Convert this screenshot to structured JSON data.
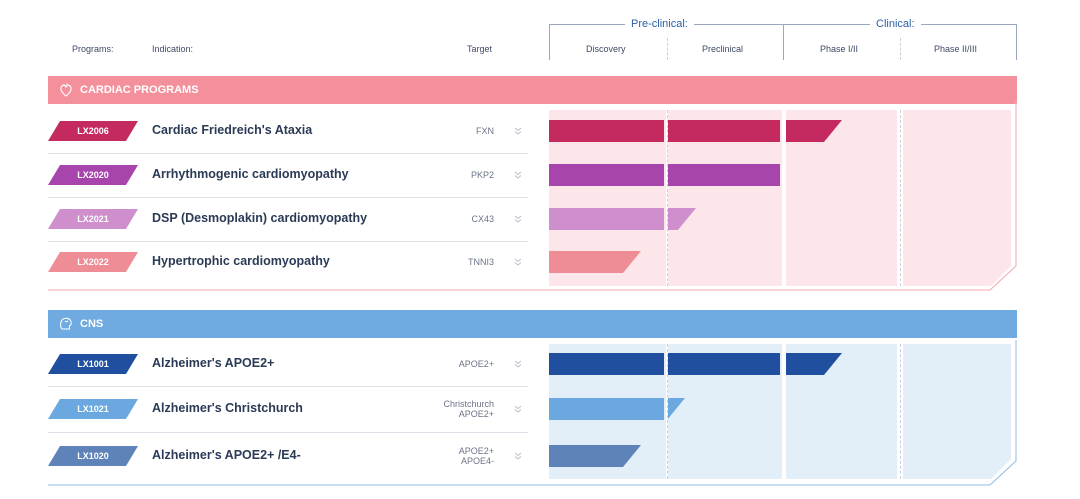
{
  "columns": {
    "programs": "Programs:",
    "indication": "Indication:",
    "target": "Target",
    "preclinical_group": "Pre-clinical:",
    "clinical_group": "Clinical:",
    "discovery": "Discovery",
    "preclinical": "Preclinical",
    "phase12": "Phase I/II",
    "phase23": "Phase II/III"
  },
  "colors": {
    "cardiac_band": "#f4909c",
    "cns_band": "#6faae0",
    "cardiac_bg": "#fde6ea",
    "cns_bg": "#e2eef8"
  },
  "cardiac": {
    "title": "CARDIAC PROGRAMS",
    "icon": "heart-icon",
    "rows": [
      {
        "code": "LX2006",
        "indication": "Cardiac Friedreich's Ataxia",
        "target": "FXN",
        "color": "#c42a60",
        "progress": 2.5
      },
      {
        "code": "LX2020",
        "indication": "Arrhythmogenic cardiomyopathy",
        "target": "PKP2",
        "color": "#a845ad",
        "progress": 2.0
      },
      {
        "code": "LX2021",
        "indication": "DSP (Desmoplakin) cardiomyopathy",
        "target": "CX43",
        "color": "#cf8fcd",
        "progress": 1.25
      },
      {
        "code": "LX2022",
        "indication": "Hypertrophic cardiomyopathy",
        "target": "TNNI3",
        "color": "#ef8d96",
        "progress": 0.8
      }
    ]
  },
  "cns": {
    "title": "CNS",
    "icon": "brain-icon",
    "rows": [
      {
        "code": "LX1001",
        "indication": "Alzheimer's APOE2+",
        "target": "APOE2+",
        "target2": "",
        "color": "#1f4f9e",
        "progress": 2.5
      },
      {
        "code": "LX1021",
        "indication": "Alzheimer's Christchurch",
        "target": "Christchurch",
        "target2": "APOE2+",
        "color": "#6aa8df",
        "progress": 1.15
      },
      {
        "code": "LX1020",
        "indication": "Alzheimer's APOE2+ /E4-",
        "target": "APOE2+",
        "target2": "APOE4-",
        "color": "#5e83b9",
        "progress": 0.8
      }
    ]
  }
}
